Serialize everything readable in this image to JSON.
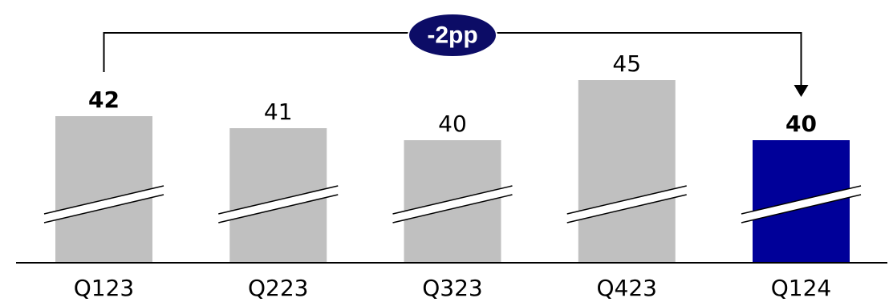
{
  "chart_data": {
    "type": "bar",
    "categories": [
      "Q123",
      "Q223",
      "Q323",
      "Q423",
      "Q124"
    ],
    "values": [
      42,
      41,
      40,
      45,
      40
    ],
    "value_labels": [
      "42",
      "41",
      "40",
      "45",
      "40"
    ],
    "bold_labels": [
      true,
      false,
      false,
      false,
      true
    ],
    "bar_colors": [
      "#c0c0c0",
      "#c0c0c0",
      "#c0c0c0",
      "#c0c0c0",
      "#000099"
    ],
    "axis_break": true,
    "grid": false,
    "comparison": {
      "from": "Q123",
      "to": "Q124",
      "label": "-2pp",
      "badge_color": "#0c0c66"
    }
  }
}
